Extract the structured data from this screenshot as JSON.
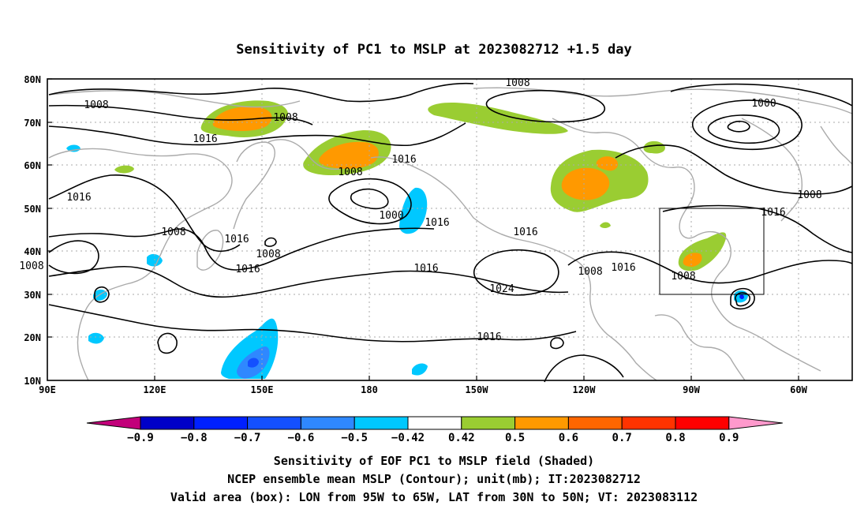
{
  "title": "Sensitivity of PC1 to MSLP at 2023082712 +1.5 day",
  "map": {
    "lat_ticks": [
      "80N",
      "70N",
      "60N",
      "50N",
      "40N",
      "30N",
      "20N",
      "10N"
    ],
    "lon_ticks": [
      "90E",
      "120E",
      "150E",
      "180",
      "150W",
      "120W",
      "90W",
      "60W"
    ],
    "contour_labels": [
      "1008",
      "1008",
      "1008",
      "1016",
      "1016",
      "1008",
      "1016",
      "1000",
      "1016",
      "1016",
      "1008",
      "1008",
      "1016",
      "1016",
      "1008",
      "1016",
      "1024",
      "1016",
      "1008",
      "1016",
      "1000",
      "1008",
      "1016",
      "1008"
    ],
    "colors": {
      "coast": "#aaaaaa",
      "contour": "#000000",
      "grid": "#aaaaaa"
    }
  },
  "colorbar": {
    "labels": [
      "−0.9",
      "−0.8",
      "−0.7",
      "−0.6",
      "−0.5",
      "−0.42",
      "0.42",
      "0.5",
      "0.6",
      "0.7",
      "0.8",
      "0.9"
    ],
    "colors": [
      "#c2007a",
      "#0000c8",
      "#0020ff",
      "#1450ff",
      "#2f88ff",
      "#00c8ff",
      "#ffffff",
      "#9acd32",
      "#ff9900",
      "#ff6600",
      "#ff3300",
      "#ff0000",
      "#ff99cc"
    ]
  },
  "caption": {
    "line1": "Sensitivity of EOF PC1 to MSLP field (Shaded)",
    "line2": "NCEP ensemble mean MSLP (Contour); unit(mb); IT:2023082712",
    "line3": "Valid area (box): LON from 95W to 65W, LAT from 30N to 50N; VT: 2023083112"
  }
}
